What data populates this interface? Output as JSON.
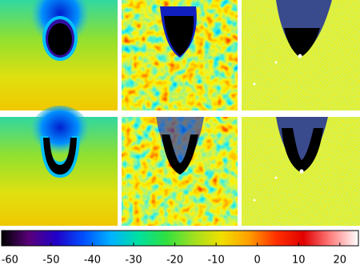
{
  "chart_data": {
    "type": "heatmap",
    "colormap": [
      "#000000",
      "#5a007a",
      "#2000c8",
      "#0050ff",
      "#00b4ff",
      "#00e0a0",
      "#30e040",
      "#a0e020",
      "#f0e000",
      "#ffa000",
      "#ff3000",
      "#e00000",
      "#ff8080",
      "#ffffff"
    ],
    "xlim": [
      -62,
      24.5
    ],
    "xticks": [
      -60,
      -50,
      -40,
      -30,
      -20,
      -10,
      0,
      10,
      20
    ]
  }
}
